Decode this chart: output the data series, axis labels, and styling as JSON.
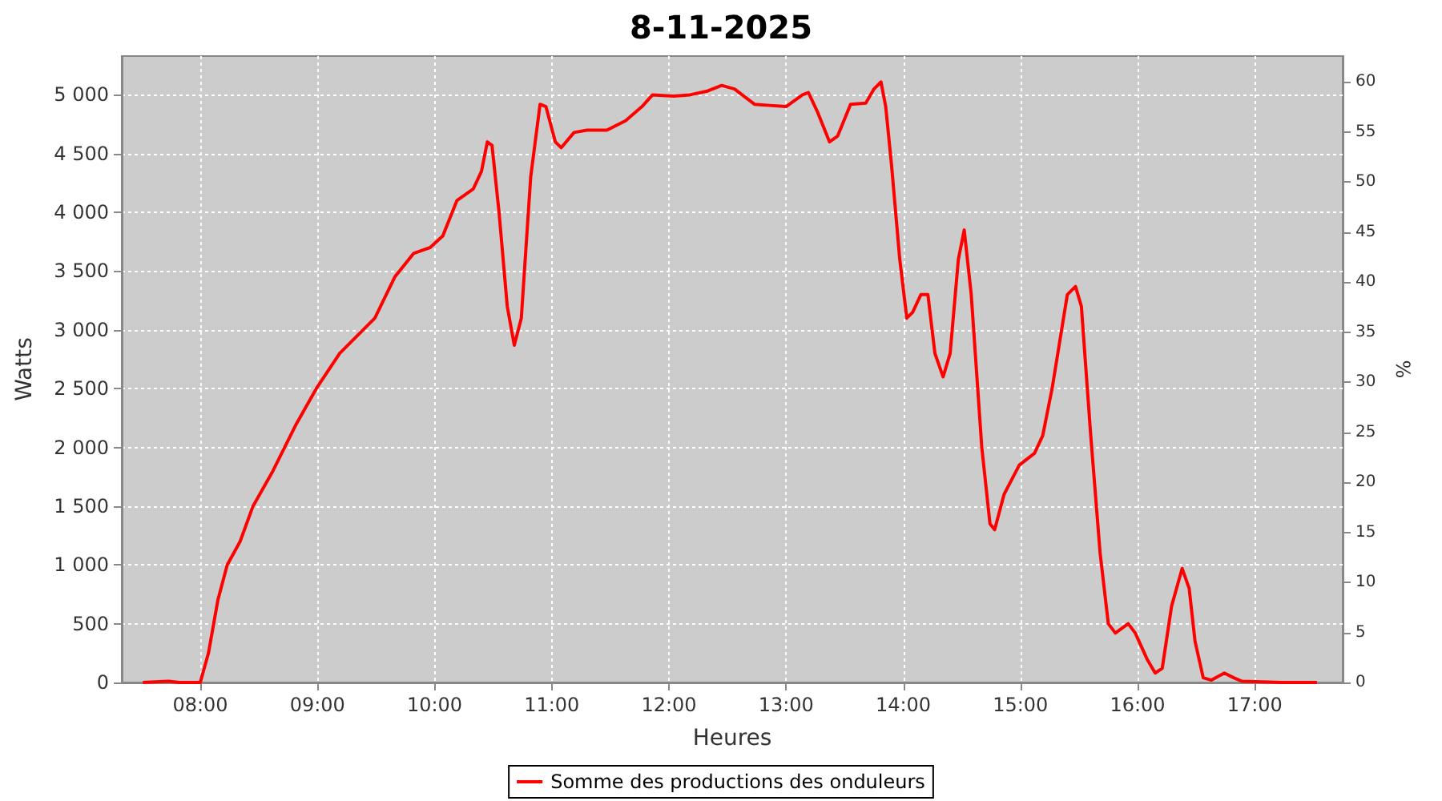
{
  "chart_data": {
    "type": "line",
    "title": "8-11-2025",
    "xlabel": "Heures",
    "ylabel": "Watts",
    "y2label": "%",
    "x": [
      7.51,
      7.73,
      7.82,
      8.0,
      8.07,
      8.15,
      8.23,
      8.34,
      8.45,
      8.62,
      8.82,
      8.99,
      9.19,
      9.49,
      9.66,
      9.82,
      9.96,
      10.07,
      10.19,
      10.33,
      10.4,
      10.45,
      10.49,
      10.55,
      10.62,
      10.68,
      10.74,
      10.82,
      10.9,
      10.95,
      11.03,
      11.08,
      11.19,
      11.3,
      11.47,
      11.63,
      11.77,
      11.86,
      12.04,
      12.18,
      12.32,
      12.45,
      12.56,
      12.73,
      12.86,
      13.0,
      13.14,
      13.19,
      13.27,
      13.37,
      13.44,
      13.55,
      13.68,
      13.75,
      13.81,
      13.85,
      13.9,
      13.97,
      14.03,
      14.08,
      14.15,
      14.21,
      14.27,
      14.34,
      14.4,
      14.47,
      14.52,
      14.58,
      14.67,
      14.74,
      14.78,
      14.86,
      14.99,
      15.12,
      15.19,
      15.27,
      15.4,
      15.47,
      15.52,
      15.6,
      15.68,
      15.75,
      15.81,
      15.92,
      15.98,
      16.08,
      16.15,
      16.21,
      16.29,
      16.38,
      16.44,
      16.49,
      16.56,
      16.63,
      16.74,
      16.82,
      16.89,
      17.23,
      17.53
    ],
    "series": [
      {
        "name": "Somme des productions des onduleurs",
        "color": "#ff0000",
        "values": [
          0,
          10,
          0,
          0,
          250,
          700,
          1000,
          1200,
          1500,
          1800,
          2200,
          2500,
          2800,
          3100,
          3450,
          3650,
          3700,
          3800,
          4100,
          4200,
          4350,
          4600,
          4570,
          4000,
          3200,
          2870,
          3100,
          4300,
          4920,
          4900,
          4600,
          4550,
          4680,
          4700,
          4700,
          4780,
          4900,
          5000,
          4990,
          5000,
          5030,
          5080,
          5050,
          4920,
          4910,
          4900,
          5000,
          5020,
          4850,
          4600,
          4650,
          4920,
          4930,
          5050,
          5110,
          4900,
          4400,
          3600,
          3100,
          3150,
          3300,
          3300,
          2800,
          2600,
          2800,
          3600,
          3850,
          3300,
          2000,
          1350,
          1300,
          1600,
          1850,
          1950,
          2100,
          2500,
          3300,
          3370,
          3200,
          2100,
          1100,
          500,
          420,
          500,
          420,
          200,
          80,
          120,
          650,
          970,
          800,
          350,
          40,
          20,
          80,
          40,
          10,
          0,
          0
        ]
      }
    ],
    "xlim": [
      7.33,
      17.75
    ],
    "xticks": [
      {
        "value": 8,
        "label": "08:00"
      },
      {
        "value": 9,
        "label": "09:00"
      },
      {
        "value": 10,
        "label": "10:00"
      },
      {
        "value": 11,
        "label": "11:00"
      },
      {
        "value": 12,
        "label": "12:00"
      },
      {
        "value": 13,
        "label": "13:00"
      },
      {
        "value": 14,
        "label": "14:00"
      },
      {
        "value": 15,
        "label": "15:00"
      },
      {
        "value": 16,
        "label": "16:00"
      },
      {
        "value": 17,
        "label": "17:00"
      }
    ],
    "ylim": [
      0,
      5330
    ],
    "yticks": [
      0,
      500,
      {
        "value": 1000,
        "label": "1 000"
      },
      {
        "value": 1500,
        "label": "1 500"
      },
      {
        "value": 2000,
        "label": "2 000"
      },
      {
        "value": 2500,
        "label": "2 500"
      },
      {
        "value": 3000,
        "label": "3 000"
      },
      {
        "value": 3500,
        "label": "3 500"
      },
      {
        "value": 4000,
        "label": "4 000"
      },
      {
        "value": 4500,
        "label": "4 500"
      },
      {
        "value": 5000,
        "label": "5 000"
      }
    ],
    "y2lim": [
      0,
      62.6
    ],
    "y2ticks": [
      0,
      5,
      10,
      15,
      20,
      25,
      30,
      35,
      40,
      45,
      50,
      55,
      60
    ],
    "grid": true,
    "legend": "bottom",
    "marker": "none",
    "line_style": "solid"
  }
}
